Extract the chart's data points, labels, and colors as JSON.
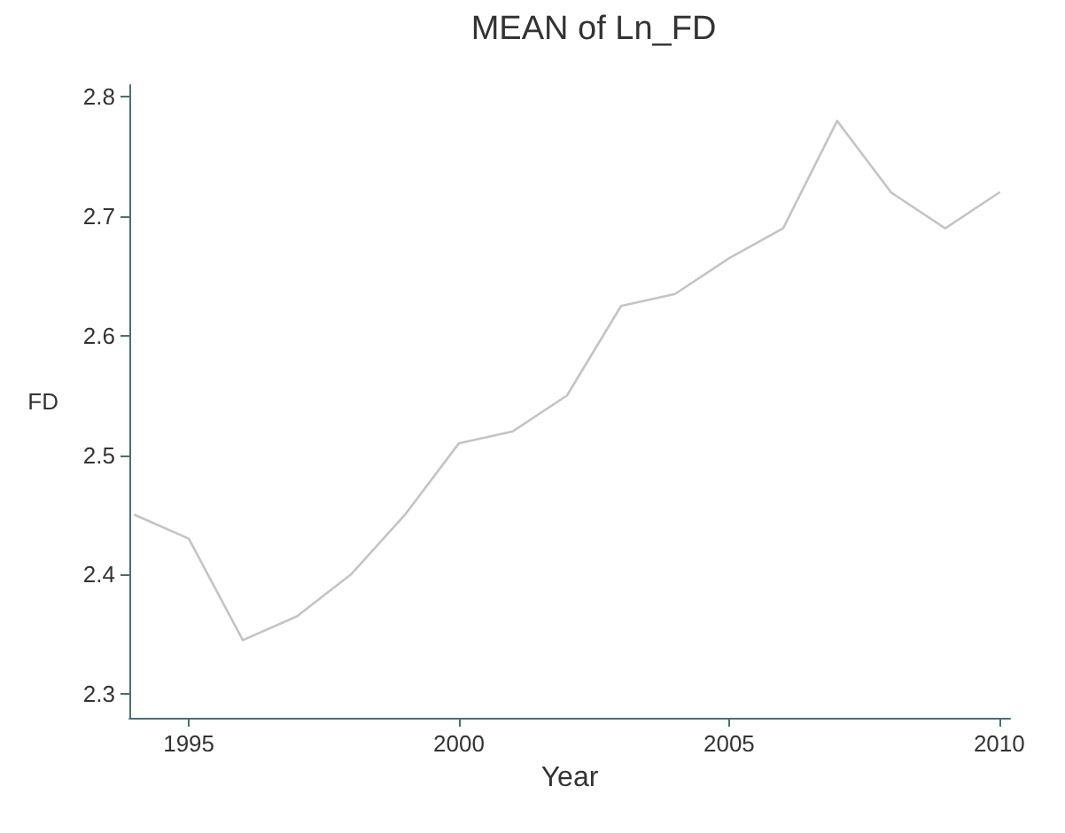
{
  "chart_data": {
    "type": "line",
    "title": "MEAN of Ln_FD",
    "xlabel": "Year",
    "ylabel": "FD",
    "x": [
      1994,
      1995,
      1996,
      1997,
      1998,
      1999,
      2000,
      2001,
      2002,
      2003,
      2004,
      2005,
      2006,
      2007,
      2008,
      2009,
      2010
    ],
    "series": [
      {
        "color": "#c4c4c4",
        "values": [
          2.45,
          2.43,
          2.345,
          2.365,
          2.4,
          2.45,
          2.51,
          2.52,
          2.55,
          2.625,
          2.635,
          2.665,
          2.69,
          2.78,
          2.72,
          2.69,
          2.72
        ]
      }
    ],
    "xlim": [
      1993.9,
      2010.2
    ],
    "xticks": [
      1995,
      2000,
      2005,
      2010
    ],
    "ylim": [
      2.28,
      2.81
    ],
    "yticks": [
      2.3,
      2.4,
      2.5,
      2.6,
      2.7,
      2.8
    ],
    "grid": false,
    "marker": "none",
    "line_style": "solid"
  }
}
